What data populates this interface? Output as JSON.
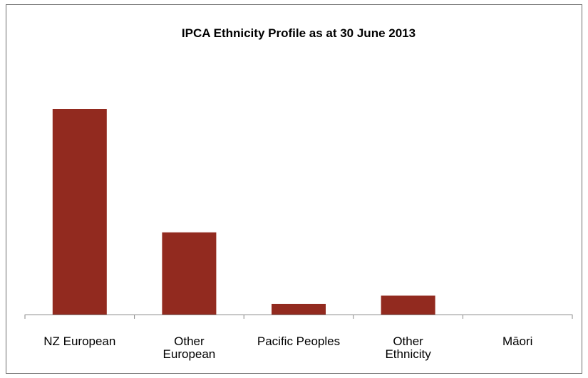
{
  "chart_data": {
    "type": "bar",
    "title": "IPCA Ethnicity Profile as at 30 June 2013",
    "xlabel": "",
    "ylabel": "",
    "categories": [
      [
        "NZ European"
      ],
      [
        "Other",
        "European"
      ],
      [
        "Pacific Peoples"
      ],
      [
        "Other",
        "Ethnicity"
      ],
      [
        "Māori"
      ]
    ],
    "series": [
      {
        "values": [
          25,
          10,
          1.3,
          2.3,
          0
        ]
      }
    ],
    "ylim": [
      0,
      27
    ],
    "grid": false,
    "legend": "none",
    "bar_color": "#922a1f",
    "axis_color": "#888888"
  }
}
